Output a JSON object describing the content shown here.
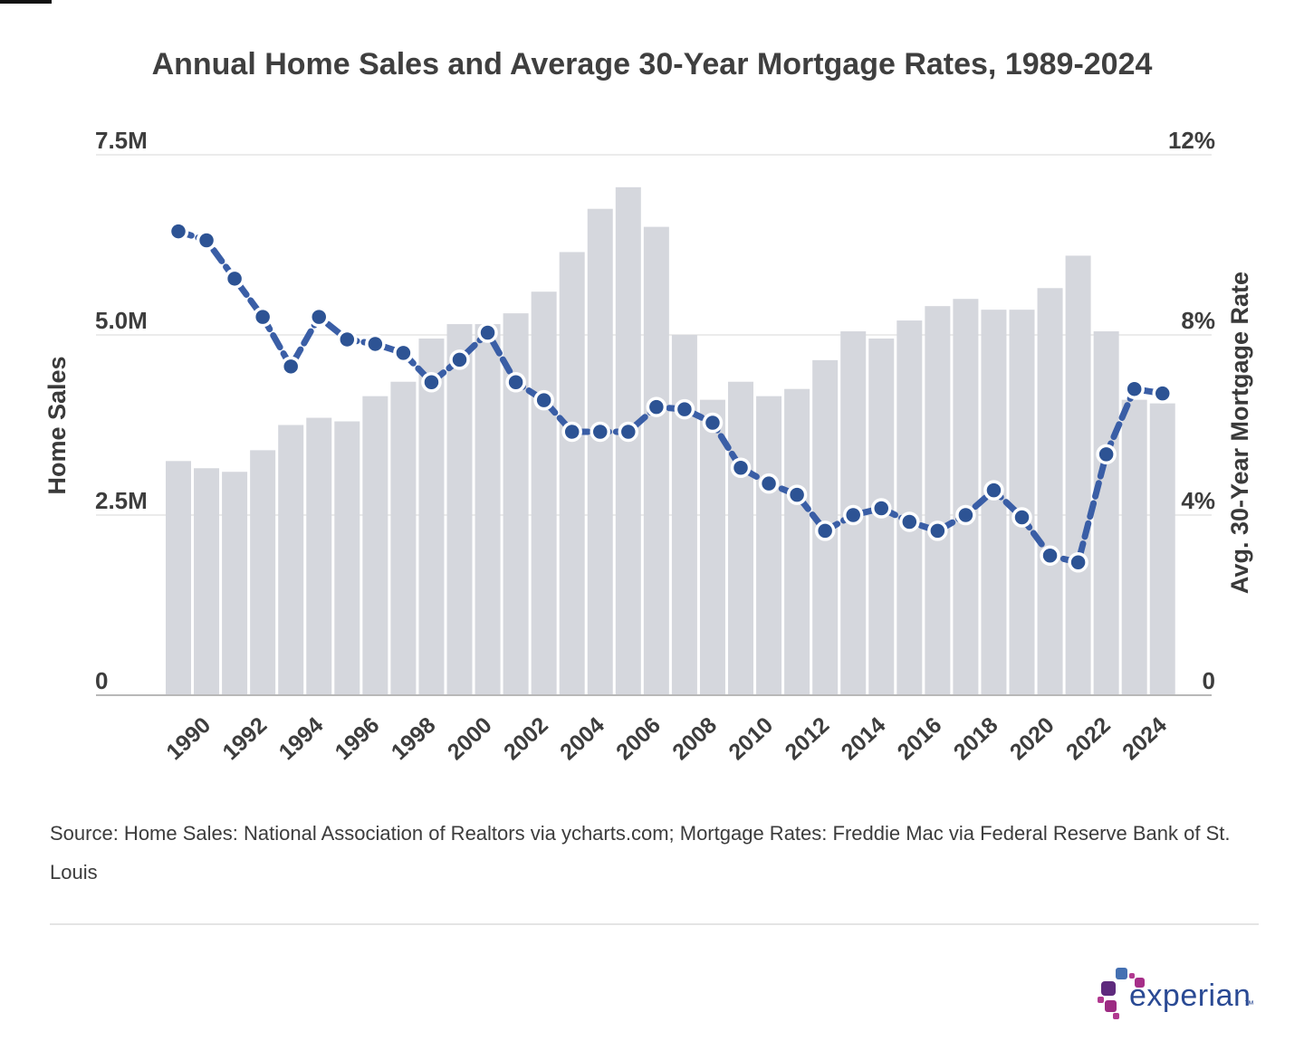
{
  "title": "Annual Home Sales and Average 30-Year Mortgage Rates, 1989-2024",
  "source": "Source: Home Sales: National Association of Realtors via ycharts.com; Mortgage Rates: Freddie Mac via Federal Reserve Bank of St. Louis",
  "logo": {
    "wordmark": "experian",
    "trademark": "™",
    "colors": {
      "wordmark_blue": "#2a4a94",
      "square_blue": "#4470b2",
      "square_purple": "#5e2a7d",
      "square_magenta_dark": "#9c2b82",
      "square_magenta": "#a62e88",
      "square_magenta_light": "#b13a90"
    }
  },
  "chart_data": {
    "type": "combo-bar-line",
    "title": "Annual Home Sales and Average 30-Year Mortgage Rates, 1989-2024",
    "grid": "horizontal",
    "legend": "none",
    "categories": [
      1989,
      1990,
      1991,
      1992,
      1993,
      1994,
      1995,
      1996,
      1997,
      1998,
      1999,
      2000,
      2001,
      2002,
      2003,
      2004,
      2005,
      2006,
      2007,
      2008,
      2009,
      2010,
      2011,
      2012,
      2013,
      2014,
      2015,
      2016,
      2017,
      2018,
      2019,
      2020,
      2021,
      2022,
      2023,
      2024
    ],
    "x_tick_labels": [
      "1990",
      "1992",
      "1994",
      "1996",
      "1998",
      "2000",
      "2002",
      "2004",
      "2006",
      "2008",
      "2010",
      "2012",
      "2014",
      "2016",
      "2018",
      "2020",
      "2022",
      "2024"
    ],
    "series": [
      {
        "name": "Home Sales",
        "type": "bar",
        "axis": "left",
        "unit": "millions",
        "color": "#d5d7dd",
        "values": [
          3.25,
          3.15,
          3.1,
          3.4,
          3.75,
          3.85,
          3.8,
          4.15,
          4.35,
          4.95,
          5.15,
          5.15,
          5.3,
          5.6,
          6.15,
          6.75,
          7.05,
          6.5,
          5.0,
          4.1,
          4.35,
          4.15,
          4.25,
          4.65,
          5.05,
          4.95,
          5.2,
          5.4,
          5.5,
          5.35,
          5.35,
          5.65,
          6.1,
          5.05,
          4.1,
          4.05
        ]
      },
      {
        "name": "Avg. 30-Year Mortgage Rate",
        "type": "line",
        "axis": "right",
        "unit": "percent",
        "color": "#3a5ea6",
        "point_color": "#2d5394",
        "values": [
          10.3,
          10.1,
          9.25,
          8.4,
          7.3,
          8.4,
          7.9,
          7.8,
          7.6,
          6.95,
          7.45,
          8.05,
          6.95,
          6.55,
          5.85,
          5.85,
          5.85,
          6.4,
          6.35,
          6.05,
          5.05,
          4.7,
          4.45,
          3.65,
          4.0,
          4.15,
          3.85,
          3.65,
          4.0,
          4.55,
          3.95,
          3.1,
          2.95,
          5.35,
          6.8,
          6.7
        ]
      }
    ],
    "y_left": {
      "label": "Home Sales",
      "min": 0,
      "max": 7.5,
      "ticks": [
        {
          "value": 7.5,
          "label": "7.5M"
        },
        {
          "value": 5.0,
          "label": "5.0M"
        },
        {
          "value": 2.5,
          "label": "2.5M"
        },
        {
          "value": 0,
          "label": "0"
        }
      ]
    },
    "y_right": {
      "label": "Avg. 30-Year Mortgage Rate",
      "min": 0,
      "max": 12,
      "ticks": [
        {
          "value": 12,
          "label": "12%"
        },
        {
          "value": 8,
          "label": "8%"
        },
        {
          "value": 4,
          "label": "4%"
        },
        {
          "value": 0,
          "label": "0"
        }
      ]
    },
    "colors": {
      "bar": "#d5d7dd",
      "line": "#3a5ea6",
      "point_fill": "#2d5394",
      "point_stroke": "#ffffff",
      "gridline": "#ebebeb",
      "axis_line": "#b8b8b8",
      "tick_text": "#3d3d3d"
    }
  }
}
